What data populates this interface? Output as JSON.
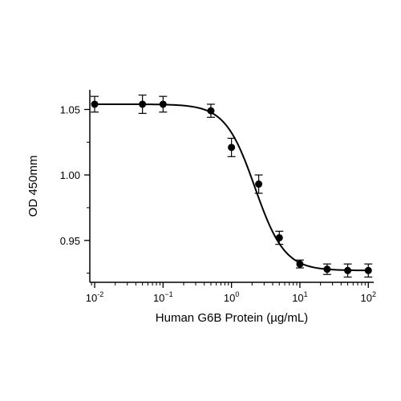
{
  "chart_data": {
    "type": "scatter",
    "xlabel": "Human G6B Protein (µg/mL)",
    "ylabel": "OD 450mm",
    "xscale": "log",
    "xlim": [
      0.0085,
      120
    ],
    "ylim": [
      0.918,
      1.065
    ],
    "x_ticks": [
      {
        "value": 0.01,
        "base": "10",
        "exp": "-2"
      },
      {
        "value": 0.1,
        "base": "10",
        "exp": "−1"
      },
      {
        "value": 1,
        "base": "10",
        "exp": "0"
      },
      {
        "value": 10,
        "base": "10",
        "exp": "1"
      },
      {
        "value": 100,
        "base": "10",
        "exp": "2"
      }
    ],
    "y_ticks": [
      {
        "value": 0.95,
        "label": "0.95"
      },
      {
        "value": 1.0,
        "label": "1.00"
      },
      {
        "value": 1.05,
        "label": "1.05"
      }
    ],
    "points": [
      {
        "x": 0.01,
        "y": 1.054,
        "err": 0.006
      },
      {
        "x": 0.05,
        "y": 1.054,
        "err": 0.007
      },
      {
        "x": 0.1,
        "y": 1.054,
        "err": 0.006
      },
      {
        "x": 0.5,
        "y": 1.049,
        "err": 0.005
      },
      {
        "x": 1,
        "y": 1.021,
        "err": 0.007
      },
      {
        "x": 2.5,
        "y": 0.993,
        "err": 0.007
      },
      {
        "x": 5,
        "y": 0.952,
        "err": 0.005
      },
      {
        "x": 10,
        "y": 0.932,
        "err": 0.003
      },
      {
        "x": 25,
        "y": 0.928,
        "err": 0.004
      },
      {
        "x": 50,
        "y": 0.927,
        "err": 0.005
      },
      {
        "x": 100,
        "y": 0.927,
        "err": 0.005
      }
    ],
    "fit": {
      "bottom": 0.927,
      "top": 1.054,
      "ec50": 2.2,
      "hill": 2.0
    },
    "grid": false,
    "legend": false,
    "colors": {
      "marker": "#000000",
      "line": "#000000"
    }
  }
}
